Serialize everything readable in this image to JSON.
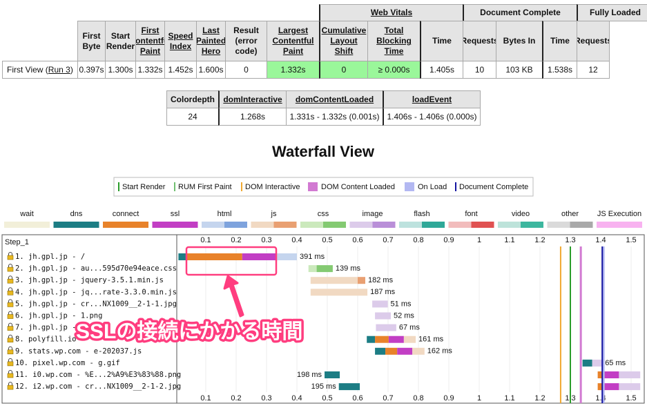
{
  "summary_table": {
    "groups": [
      "Web Vitals",
      "Document Complete",
      "Fully Loaded"
    ],
    "headers": [
      "First Byte",
      "Start Render",
      "First Contentful Paint",
      "Speed Index",
      "Last Painted Hero",
      "Result (error code)",
      "Largest Contentful Paint",
      "Cumulative Layout Shift",
      "Total Blocking Time",
      "Time",
      "Requests",
      "Bytes In",
      "Time",
      "Requests"
    ],
    "row": {
      "label": "First View (",
      "run_link": "Run 3",
      "label_end": ")",
      "cells": [
        "0.397s",
        "1.300s",
        "1.332s",
        "1.452s",
        "1.600s",
        "0",
        "1.332s",
        "0",
        "≥ 0.000s",
        "1.405s",
        "10",
        "103 KB",
        "1.538s",
        "12"
      ]
    }
  },
  "dom_table": {
    "headers": [
      "Colordepth",
      "domInteractive",
      "domContentLoaded",
      "loadEvent"
    ],
    "cells": [
      "24",
      "1.268s",
      "1.331s - 1.332s (0.001s)",
      "1.406s - 1.406s (0.000s)"
    ]
  },
  "waterfall": {
    "title": "Waterfall View",
    "markers": [
      {
        "name": "Start Render",
        "color": "#2a9d2a",
        "time": 1.3
      },
      {
        "name": "RUM First Paint",
        "color": "#6fbf6f"
      },
      {
        "name": "DOM Interactive",
        "color": "#f0a830",
        "time": 1.268
      },
      {
        "name": "DOM Content Loaded",
        "color": "#d27ad2",
        "start": 1.331,
        "end": 1.332
      },
      {
        "name": "On Load",
        "color": "#b3b8f2",
        "start": 1.406,
        "end": 1.406
      },
      {
        "name": "Document Complete",
        "color": "#1414a0",
        "time": 1.405
      }
    ],
    "phases": [
      {
        "name": "wait",
        "colors": [
          "#f2efd9"
        ]
      },
      {
        "name": "dns",
        "colors": [
          "#1c7d84"
        ]
      },
      {
        "name": "connect",
        "colors": [
          "#e8822a"
        ]
      },
      {
        "name": "ssl",
        "colors": [
          "#c23ec4"
        ]
      },
      {
        "name": "html",
        "colors": [
          "#c5d5ee",
          "#7ea3dd"
        ]
      },
      {
        "name": "js",
        "colors": [
          "#f1d9c2",
          "#e9a072"
        ]
      },
      {
        "name": "css",
        "colors": [
          "#cbe9bc",
          "#84ca72"
        ]
      },
      {
        "name": "image",
        "colors": [
          "#dccbea",
          "#b98fd8"
        ]
      },
      {
        "name": "flash",
        "colors": [
          "#bde2de",
          "#2fa898"
        ]
      },
      {
        "name": "font",
        "colors": [
          "#f2bcbc",
          "#e05252"
        ]
      },
      {
        "name": "video",
        "colors": [
          "#bde3da",
          "#3db79f"
        ]
      },
      {
        "name": "other",
        "colors": [
          "#dadada",
          "#a9a9a9"
        ]
      },
      {
        "name": "JS Execution",
        "colors": [
          "#f8b2f0"
        ]
      }
    ],
    "step": "Step_1",
    "xlim": [
      0,
      1.545
    ],
    "xticks": [
      0.1,
      0.2,
      0.3,
      0.4,
      0.5,
      0.6,
      0.7,
      0.8,
      0.9,
      1,
      1.1,
      1.2,
      1.3,
      1.4,
      1.5
    ],
    "requests": [
      {
        "label": "1. jh.gpl.jp - /",
        "duration": "391 ms",
        "segments": [
          {
            "phase": "dns",
            "start": 0.01,
            "end": 0.036
          },
          {
            "phase": "connect",
            "start": 0.036,
            "end": 0.22
          },
          {
            "phase": "ssl",
            "start": 0.22,
            "end": 0.33
          },
          {
            "phase": "html",
            "start": 0.33,
            "end": 0.4
          }
        ]
      },
      {
        "label": "2. jh.gpl.jp - au...595d70e94eace.css",
        "duration": "139 ms",
        "segments": [
          {
            "phase": "css",
            "start": 0.438,
            "end": 0.465
          },
          {
            "phase": "css",
            "start": 0.465,
            "end": 0.518
          }
        ]
      },
      {
        "label": "3. jh.gpl.jp - jquery-3.5.1.min.js",
        "duration": "182 ms",
        "segments": [
          {
            "phase": "js",
            "start": 0.445,
            "end": 0.6
          },
          {
            "phase": "js",
            "start": 0.6,
            "end": 0.625
          }
        ]
      },
      {
        "label": "4. jh.gpl.jp - jq...rate-3.3.0.min.js",
        "duration": "187 ms",
        "segments": [
          {
            "phase": "js",
            "start": 0.445,
            "end": 0.632
          }
        ]
      },
      {
        "label": "5. jh.gpl.jp - cr...NX1009__2-1-1.jpg",
        "duration": "51 ms",
        "segments": [
          {
            "phase": "image",
            "start": 0.648,
            "end": 0.699
          }
        ]
      },
      {
        "label": "6. jh.gpl.jp - 1.png",
        "duration": "52 ms",
        "segments": [
          {
            "phase": "image",
            "start": 0.657,
            "end": 0.709
          }
        ]
      },
      {
        "label": "7. jh.gpl.jp - ...d0",
        "duration": "67 ms",
        "segments": [
          {
            "phase": "image",
            "start": 0.66,
            "end": 0.727
          }
        ]
      },
      {
        "label": "8. polyfill.io",
        "duration": "161 ms",
        "segments": [
          {
            "phase": "dns",
            "start": 0.63,
            "end": 0.657
          },
          {
            "phase": "connect",
            "start": 0.657,
            "end": 0.702
          },
          {
            "phase": "ssl",
            "start": 0.702,
            "end": 0.752
          },
          {
            "phase": "js",
            "start": 0.752,
            "end": 0.791
          }
        ]
      },
      {
        "label": "9. stats.wp.com - e-202037.js",
        "duration": "162 ms",
        "segments": [
          {
            "phase": "dns",
            "start": 0.657,
            "end": 0.691
          },
          {
            "phase": "connect",
            "start": 0.691,
            "end": 0.73
          },
          {
            "phase": "ssl",
            "start": 0.73,
            "end": 0.78
          },
          {
            "phase": "js",
            "start": 0.78,
            "end": 0.82
          }
        ]
      },
      {
        "label": "10. pixel.wp.com - g.gif",
        "duration": "65 ms",
        "segments": [
          {
            "phase": "dns",
            "start": 1.34,
            "end": 1.372
          },
          {
            "phase": "image",
            "start": 1.372,
            "end": 1.405
          }
        ]
      },
      {
        "label": "11. i0.wp.com - %E...2%A9%E3%83%88.png",
        "duration": "198 ms",
        "segments": [
          {
            "phase": "dns",
            "start": 0.491,
            "end": 0.541
          },
          {
            "phase": "connect",
            "start": 1.39,
            "end": 1.41
          },
          {
            "phase": "ssl",
            "start": 1.41,
            "end": 1.46
          },
          {
            "phase": "image",
            "start": 1.46,
            "end": 1.53
          }
        ]
      },
      {
        "label": "12. i2.wp.com - cr...NX1009__2-1-2.jpg",
        "duration": "195 ms",
        "segments": [
          {
            "phase": "dns",
            "start": 0.538,
            "end": 0.607
          },
          {
            "phase": "connect",
            "start": 1.39,
            "end": 1.41
          },
          {
            "phase": "ssl",
            "start": 1.41,
            "end": 1.46
          },
          {
            "phase": "image",
            "start": 1.46,
            "end": 1.53
          }
        ]
      }
    ],
    "annotation": "SSLの接続にかかる時間"
  }
}
